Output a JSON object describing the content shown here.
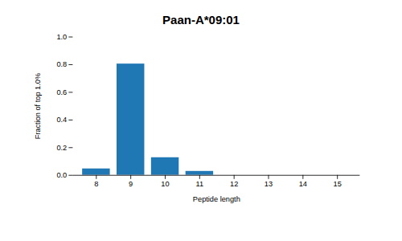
{
  "chart_data": {
    "type": "bar",
    "title": "Paan-A*09:01",
    "xlabel": "Peptide length",
    "ylabel": "Fraction of top 1.0%",
    "categories": [
      8,
      9,
      10,
      11,
      12,
      13,
      14,
      15
    ],
    "values": [
      0.047,
      0.805,
      0.128,
      0.029,
      0.0,
      0.0,
      0.0,
      0.0
    ],
    "color": "#1f77b4",
    "ylim": [
      0,
      1.0
    ],
    "yticks": [
      {
        "value": 0.0,
        "label": "0.0"
      },
      0.2,
      0.4,
      0.6,
      0.8,
      {
        "value": 1.0,
        "label": "1.0"
      }
    ],
    "grid": false
  }
}
